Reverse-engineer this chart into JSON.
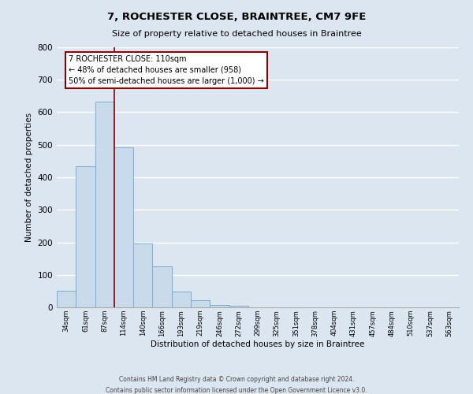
{
  "title": "7, ROCHESTER CLOSE, BRAINTREE, CM7 9FE",
  "subtitle": "Size of property relative to detached houses in Braintree",
  "bar_values": [
    50,
    435,
    633,
    491,
    196,
    126,
    49,
    22,
    8,
    5,
    0,
    0,
    0,
    0,
    0,
    0,
    0,
    0,
    0,
    0,
    0
  ],
  "bin_labels": [
    "34sqm",
    "61sqm",
    "87sqm",
    "114sqm",
    "140sqm",
    "166sqm",
    "193sqm",
    "219sqm",
    "246sqm",
    "272sqm",
    "299sqm",
    "325sqm",
    "351sqm",
    "378sqm",
    "404sqm",
    "431sqm",
    "457sqm",
    "484sqm",
    "510sqm",
    "537sqm",
    "563sqm"
  ],
  "bar_color": "#c9daea",
  "bar_edge_color": "#7aadd4",
  "ylabel": "Number of detached properties",
  "xlabel": "Distribution of detached houses by size in Braintree",
  "ylim": [
    0,
    800
  ],
  "yticks": [
    0,
    100,
    200,
    300,
    400,
    500,
    600,
    700,
    800
  ],
  "property_line_x": 3,
  "property_line_color": "#8b0000",
  "annotation_title": "7 ROCHESTER CLOSE: 110sqm",
  "annotation_line1": "← 48% of detached houses are smaller (958)",
  "annotation_line2": "50% of semi-detached houses are larger (1,000) →",
  "annotation_box_color": "#8b0000",
  "footer1": "Contains HM Land Registry data © Crown copyright and database right 2024.",
  "footer2": "Contains public sector information licensed under the Open Government Licence v3.0.",
  "bg_color": "#dce6f0",
  "plot_bg_color": "#dce6f0"
}
